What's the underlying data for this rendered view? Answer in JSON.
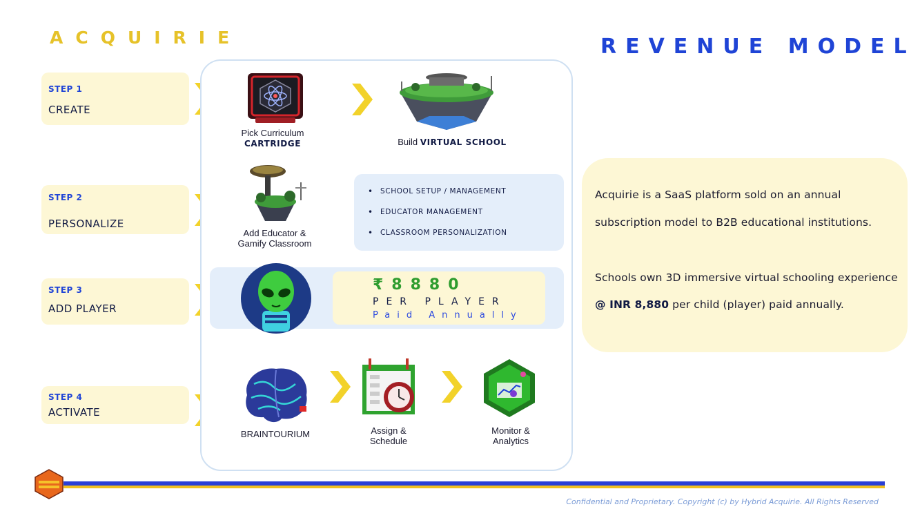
{
  "header": {
    "brand": "ACQUIRIE",
    "title": "REVENUE MODEL"
  },
  "steps": [
    {
      "num": "STEP 1",
      "name": "CREATE"
    },
    {
      "num": "STEP 2",
      "name": "PERSONALIZE"
    },
    {
      "num": "STEP 3",
      "name": "ADD PLAYER"
    },
    {
      "num": "STEP 4",
      "name": "ACTIVATE"
    }
  ],
  "flow": {
    "cartridge": {
      "line1": "Pick Curriculum",
      "line2": "CARTRIDGE"
    },
    "school": {
      "prefix": "Build",
      "bold": "VIRTUAL SCHOOL"
    },
    "educator": {
      "line1": "Add Educator &",
      "line2": "Gamify Classroom"
    },
    "bullets": [
      "SCHOOL SETUP / MANAGEMENT",
      "EDUCATOR MANAGEMENT",
      "CLASSROOM PERSONALIZATION"
    ],
    "price": "₹8880",
    "per_player": "PER PLAYER",
    "paid": "Paid Annually",
    "braintourium": "BRAINTOURIUM",
    "assign": {
      "line1": "Assign &",
      "line2": "Schedule"
    },
    "monitor": {
      "line1": "Monitor &",
      "line2": "Analytics"
    }
  },
  "info": {
    "p1_line1": "Acquirie is a SaaS platform sold on an annual",
    "p1_line2": "subscription model to B2B educational institutions.",
    "p2_line1": "Schools own 3D immersive virtual schooling experience",
    "p2_bold": "@ INR 8,880",
    "p2_rest": " per child (player) paid annually."
  },
  "footer": {
    "copyright": "Confidential and Proprietary. Copyright (c) by Hybrid Acquirie. All Rights Reserved"
  },
  "colors": {
    "brand_yellow": "#e6c229",
    "title_blue": "#1f44d6",
    "pale_yellow": "#fdf7d5",
    "pale_blue": "#e4eefa",
    "price_green": "#2e9c2e",
    "chevron_yellow": "#f2d22a"
  },
  "icons": [
    "atom-cartridge-icon",
    "floating-island-school-icon",
    "floating-island-classroom-icon",
    "alien-avatar-icon",
    "brain-icon",
    "calendar-clock-icon",
    "analytics-hexagon-icon",
    "hexagon-logo-icon",
    "chevron-right-icon"
  ]
}
